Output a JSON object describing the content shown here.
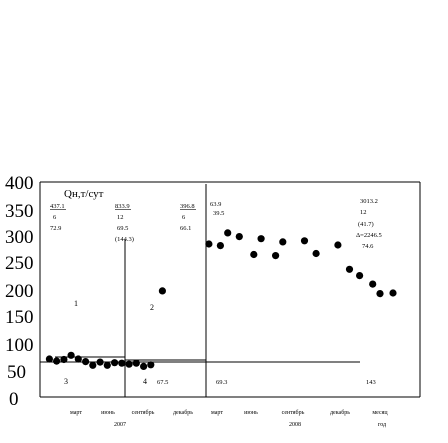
{
  "chart_data": {
    "type": "scatter",
    "ylabel": "Qн,т/сут",
    "y_ticks": [
      "400",
      "350",
      "300",
      "250",
      "200",
      "150",
      "100",
      "50",
      "0"
    ],
    "ylim": [
      0,
      400
    ],
    "x_months": [
      "март",
      "июнь",
      "сентябрь",
      "декабрь",
      "март",
      "июнь",
      "сентябрь",
      "декабрь",
      "месяц"
    ],
    "x_years": [
      "2007",
      "2008",
      "год"
    ],
    "zone_labels": [
      "1",
      "2",
      "3",
      "4"
    ],
    "annotations": {
      "z1_top": [
        "437.1",
        "6",
        "72.9"
      ],
      "z2_top": [
        "833.9",
        "12",
        "69.5",
        "(144.3)"
      ],
      "z3_top": [
        "396.8",
        "6",
        "66.1"
      ],
      "z4_top": [
        "63.9",
        "39.5"
      ],
      "right_top": [
        "3013.2",
        "12",
        "(41.7)",
        "Δ=2246.5",
        "74.6"
      ],
      "bottom": [
        "67.5",
        "69.3",
        "143"
      ]
    },
    "series": [
      {
        "points": [
          [
            0.3,
            74
          ],
          [
            0.8,
            70
          ],
          [
            1.3,
            73
          ],
          [
            1.8,
            81
          ],
          [
            2.3,
            74
          ],
          [
            2.8,
            69
          ],
          [
            3.3,
            62
          ],
          [
            3.8,
            68
          ],
          [
            4.3,
            62
          ],
          [
            4.8,
            67
          ],
          [
            5.3,
            66
          ],
          [
            5.8,
            64
          ],
          [
            6.3,
            66
          ],
          [
            6.8,
            60
          ],
          [
            7.3,
            63
          ],
          [
            8.1,
            203
          ],
          [
            11.3,
            292
          ],
          [
            12.1,
            289
          ],
          [
            12.6,
            313
          ],
          [
            13.4,
            306
          ],
          [
            14.4,
            272
          ],
          [
            14.9,
            302
          ],
          [
            15.9,
            270
          ],
          [
            16.4,
            296
          ],
          [
            17.9,
            298
          ],
          [
            18.7,
            274
          ],
          [
            20.2,
            290
          ],
          [
            21.0,
            244
          ],
          [
            21.7,
            232
          ],
          [
            22.6,
            216
          ],
          [
            23.1,
            198
          ],
          [
            24.0,
            199
          ]
        ]
      }
    ]
  }
}
